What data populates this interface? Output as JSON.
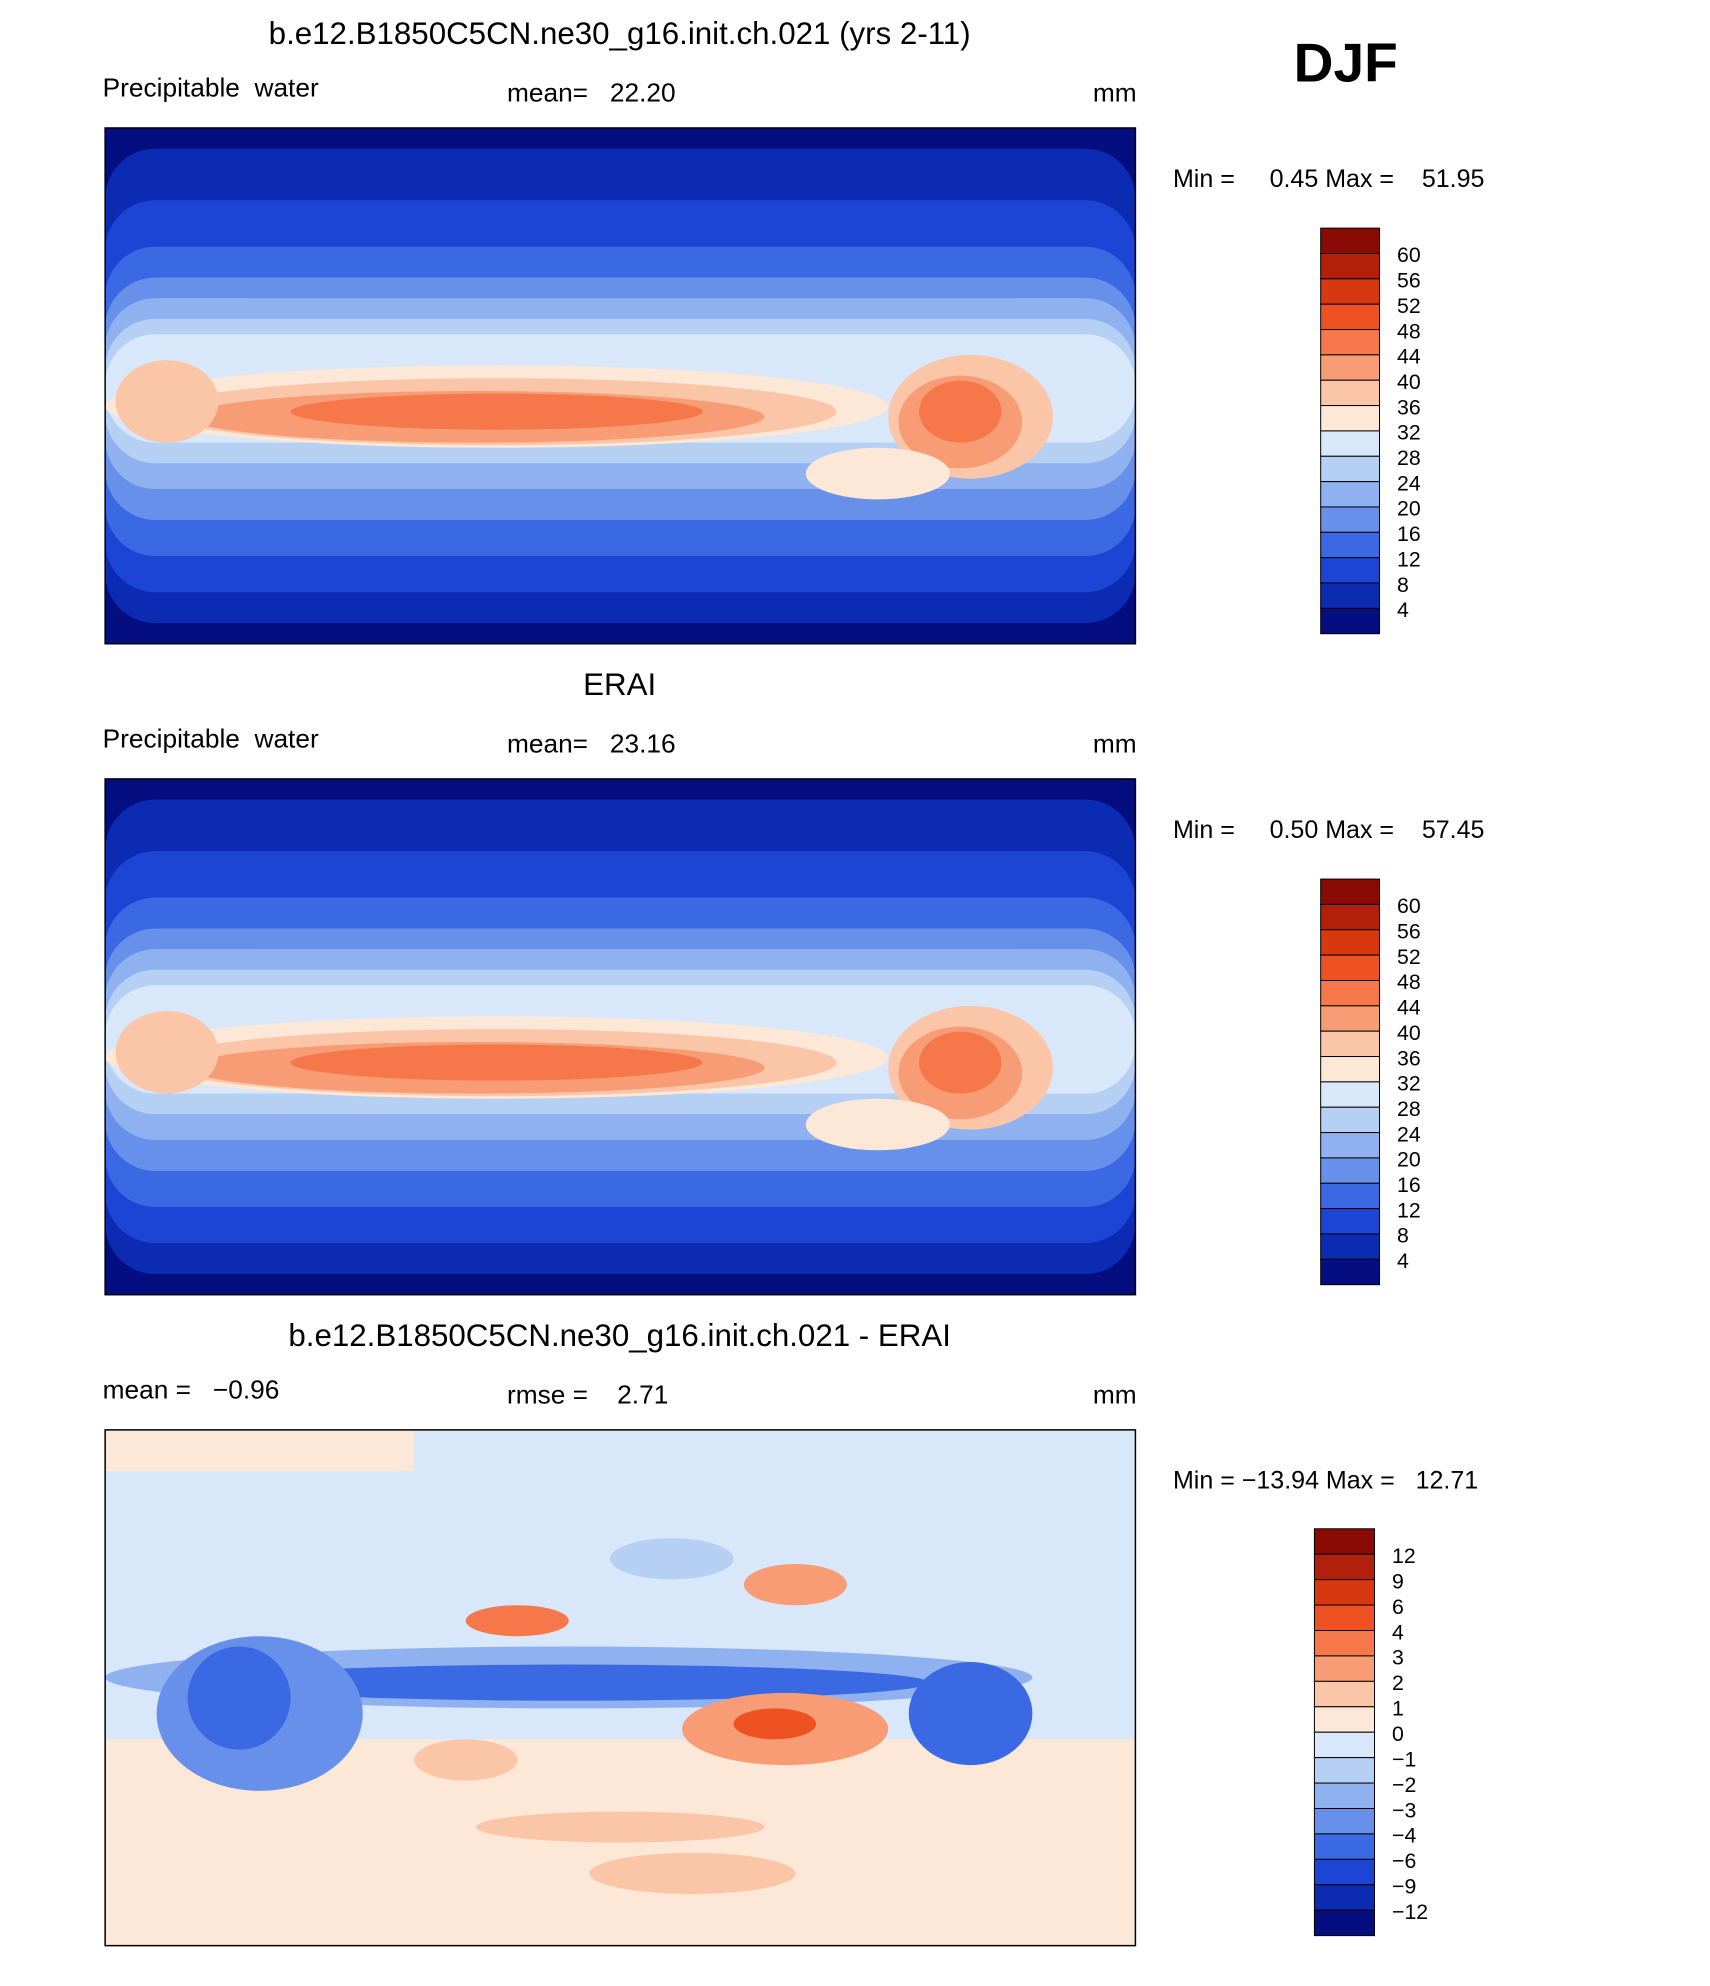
{
  "season": "DJF",
  "panels": [
    {
      "title": "b.e12.B1850C5CN.ne30_g16.init.ch.021 (yrs 2-11)",
      "left_label": "Precipitable  water",
      "center_label": "mean=   22.20",
      "units": "mm",
      "range_label": "Min =     0.45 Max =    51.95",
      "colorbar": {
        "labels": [
          "60",
          "56",
          "52",
          "48",
          "44",
          "40",
          "36",
          "32",
          "28",
          "24",
          "20",
          "16",
          "12",
          "8",
          "4"
        ],
        "colors": [
          "#8a0a04",
          "#b2200c",
          "#d8380f",
          "#ee5222",
          "#f6784a",
          "#f89c76",
          "#fbc6a8",
          "#fde7d6",
          "#d8e8fa",
          "#b6d0f4",
          "#8fb1ef",
          "#6790ea",
          "#3b68e3",
          "#1c45d6",
          "#0b2bb3",
          "#040e80"
        ]
      }
    },
    {
      "title": "ERAI",
      "left_label": "Precipitable  water",
      "center_label": "mean=   23.16",
      "units": "mm",
      "range_label": "Min =     0.50 Max =    57.45",
      "colorbar": {
        "labels": [
          "60",
          "56",
          "52",
          "48",
          "44",
          "40",
          "36",
          "32",
          "28",
          "24",
          "20",
          "16",
          "12",
          "8",
          "4"
        ],
        "colors": [
          "#8a0a04",
          "#b2200c",
          "#d8380f",
          "#ee5222",
          "#f6784a",
          "#f89c76",
          "#fbc6a8",
          "#fde7d6",
          "#d8e8fa",
          "#b6d0f4",
          "#8fb1ef",
          "#6790ea",
          "#3b68e3",
          "#1c45d6",
          "#0b2bb3",
          "#040e80"
        ]
      }
    },
    {
      "title": "b.e12.B1850C5CN.ne30_g16.init.ch.021 - ERAI",
      "left_label": "mean =   −0.96",
      "center_label": "rmse =    2.71",
      "units": "mm",
      "range_label": "Min = −13.94 Max =   12.71",
      "colorbar": {
        "labels": [
          "12",
          "9",
          "6",
          "4",
          "3",
          "2",
          "1",
          "0",
          "−1",
          "−2",
          "−3",
          "−4",
          "−6",
          "−9",
          "−12"
        ],
        "colors": [
          "#8a0a04",
          "#b2200c",
          "#d8380f",
          "#ee5222",
          "#f6784a",
          "#f89c76",
          "#fbc6a8",
          "#fde7d6",
          "#d8e8fa",
          "#b6d0f4",
          "#8fb1ef",
          "#6790ea",
          "#3b68e3",
          "#1c45d6",
          "#0b2bb3",
          "#040e80"
        ]
      }
    }
  ]
}
